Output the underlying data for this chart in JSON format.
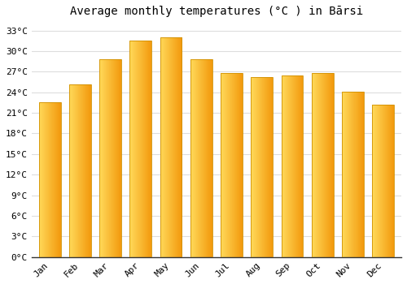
{
  "title": "Average monthly temperatures (°C ) in Bārsi",
  "months": [
    "Jan",
    "Feb",
    "Mar",
    "Apr",
    "May",
    "Jun",
    "Jul",
    "Aug",
    "Sep",
    "Oct",
    "Nov",
    "Dec"
  ],
  "values": [
    22.5,
    25.2,
    28.8,
    31.5,
    32.0,
    28.8,
    26.8,
    26.2,
    26.5,
    26.8,
    24.1,
    22.2
  ],
  "bar_color_left": "#FFCC44",
  "bar_color_right": "#F5A000",
  "bar_outline_color": "#D09000",
  "background_color": "#ffffff",
  "grid_color": "#dddddd",
  "ylim": [
    0,
    34
  ],
  "yticks": [
    0,
    3,
    6,
    9,
    12,
    15,
    18,
    21,
    24,
    27,
    30,
    33
  ],
  "title_fontsize": 10,
  "tick_fontsize": 8,
  "font_family": "monospace",
  "bar_width": 0.72
}
